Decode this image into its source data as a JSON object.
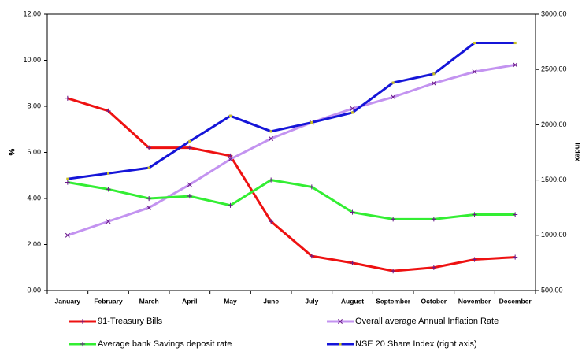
{
  "chart_data": {
    "type": "line",
    "categories": [
      "January",
      "February",
      "March",
      "April",
      "May",
      "June",
      "July",
      "August",
      "September",
      "October",
      "November",
      "December"
    ],
    "y_label": "%",
    "y2_label": "Index",
    "ylim": [
      0,
      12
    ],
    "yticks": [
      {
        "value": 0,
        "label": "0.00"
      },
      {
        "value": 2,
        "label": "2.00"
      },
      {
        "value": 4,
        "label": "4.00"
      },
      {
        "value": 6,
        "label": "6.00"
      },
      {
        "value": 8,
        "label": "8.00"
      },
      {
        "value": 10,
        "label": "10.00"
      },
      {
        "value": 12,
        "label": "12.00"
      }
    ],
    "y2lim": [
      500,
      3000
    ],
    "y2ticks": [
      {
        "value": 500,
        "label": "500.00"
      },
      {
        "value": 1000,
        "label": "1000.00"
      },
      {
        "value": 1500,
        "label": "1500.00"
      },
      {
        "value": 2000,
        "label": "2000.00"
      },
      {
        "value": 2500,
        "label": "2500.00"
      },
      {
        "value": 3000,
        "label": "3000.00"
      }
    ],
    "series": [
      {
        "name": "91-Treasury Bills",
        "color": "#ee1111",
        "marker": "+",
        "values": [
          8.35,
          7.8,
          6.2,
          6.2,
          5.85,
          3.0,
          1.5,
          1.2,
          0.85,
          1.0,
          1.35,
          1.45
        ]
      },
      {
        "name": "Overall average Annual Inflation Rate",
        "color": "#c393f0",
        "marker": "x",
        "values": [
          2.4,
          3.0,
          3.6,
          4.6,
          5.7,
          6.6,
          7.3,
          7.9,
          8.4,
          9.0,
          9.5,
          9.8
        ]
      },
      {
        "name": "Average bank Savings deposit rate",
        "color": "#33ee33",
        "marker": "+",
        "values": [
          4.7,
          4.4,
          4.0,
          4.1,
          3.7,
          4.8,
          4.5,
          3.4,
          3.1,
          3.1,
          3.3,
          3.3
        ]
      },
      {
        "name": "NSE 20 Share Index (right axis)",
        "color": "#1515d8",
        "marker": "dot",
        "axis": "y2",
        "values": [
          1510,
          1560,
          1610,
          1850,
          2080,
          1940,
          2020,
          2110,
          2380,
          2460,
          2740,
          2740
        ]
      }
    ]
  }
}
